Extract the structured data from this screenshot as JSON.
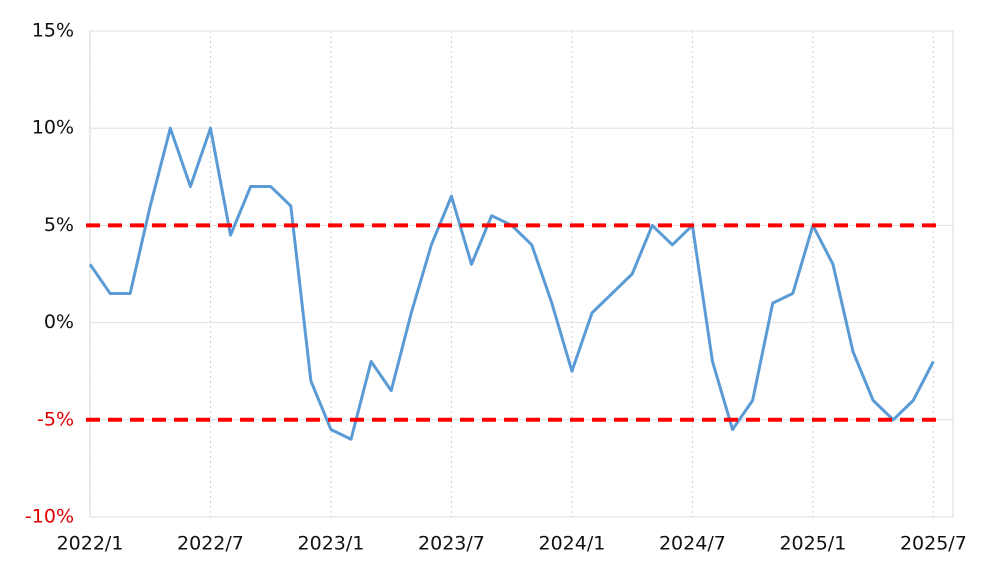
{
  "chart_data": {
    "type": "line",
    "x": [
      "2022/1",
      "2022/2",
      "2022/3",
      "2022/4",
      "2022/5",
      "2022/6",
      "2022/7",
      "2022/8",
      "2022/9",
      "2022/10",
      "2022/11",
      "2022/12",
      "2023/1",
      "2023/2",
      "2023/3",
      "2023/4",
      "2023/5",
      "2023/6",
      "2023/7",
      "2023/8",
      "2023/9",
      "2023/10",
      "2023/11",
      "2023/12",
      "2024/1",
      "2024/2",
      "2024/3",
      "2024/4",
      "2024/5",
      "2024/6",
      "2024/7",
      "2024/8",
      "2024/9",
      "2024/10",
      "2024/11",
      "2024/12",
      "2025/1",
      "2025/2",
      "2025/3",
      "2025/4",
      "2025/5",
      "2025/6",
      "2025/7"
    ],
    "series": [
      {
        "color": "#5b9bd5",
        "values": [
          3.0,
          1.5,
          1.5,
          6.0,
          10.0,
          7.0,
          10.0,
          4.5,
          7.0,
          7.0,
          6.0,
          -3.0,
          -5.5,
          -6.0,
          -2.0,
          -3.5,
          0.5,
          4.0,
          6.5,
          3.0,
          5.5,
          5.0,
          4.0,
          1.0,
          -2.5,
          0.5,
          1.5,
          2.5,
          5.0,
          4.0,
          5.0,
          -2.0,
          -5.5,
          -4.0,
          1.0,
          1.5,
          5.0,
          3.0,
          -1.5,
          -4.0,
          -5.0,
          -4.0,
          -2.0
        ]
      }
    ],
    "xticks": [
      "2022/1",
      "2022/7",
      "2023/1",
      "2023/7",
      "2024/1",
      "2024/7",
      "2025/1",
      "2025/7"
    ],
    "ylim": [
      -10,
      15
    ],
    "yticks": [
      {
        "value": -10,
        "label": "-10%"
      },
      {
        "value": -5,
        "label": "-5%"
      },
      {
        "value": 0,
        "label": "0%"
      },
      {
        "value": 5,
        "label": "5%"
      },
      {
        "value": 10,
        "label": "10%"
      },
      {
        "value": 15,
        "label": "15%"
      }
    ],
    "reference_lines": [
      {
        "value": 5,
        "color": "#ff0000"
      },
      {
        "value": -5,
        "color": "#ff0000"
      }
    ],
    "negative_tick_color": "#e00000",
    "grid": true
  }
}
